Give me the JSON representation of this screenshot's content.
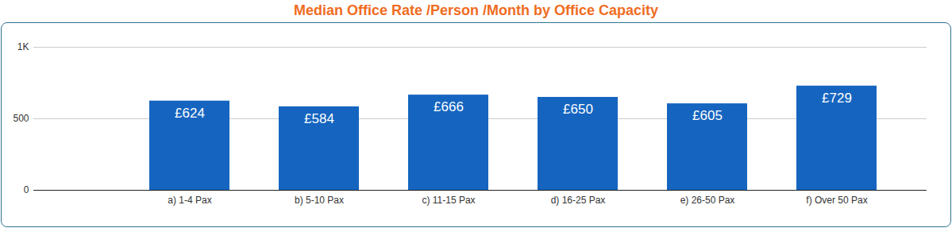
{
  "chart_data": {
    "type": "bar",
    "title": "Median Office Rate /Person /Month by Office Capacity",
    "categories": [
      "a) 1-4 Pax",
      "b) 5-10 Pax",
      "c) 11-15 Pax",
      "d) 16-25 Pax",
      "e) 26-50 Pax",
      "f) Over 50 Pax"
    ],
    "values": [
      624,
      584,
      666,
      650,
      605,
      729
    ],
    "value_labels": [
      "£624",
      "£584",
      "£666",
      "£650",
      "£605",
      "£729"
    ],
    "color": "#1565c0",
    "ylim": [
      0,
      1000
    ],
    "yticks": [
      0,
      500,
      {
        "value": 1000,
        "label": "1K"
      }
    ],
    "grid": true,
    "data_labels": true
  }
}
